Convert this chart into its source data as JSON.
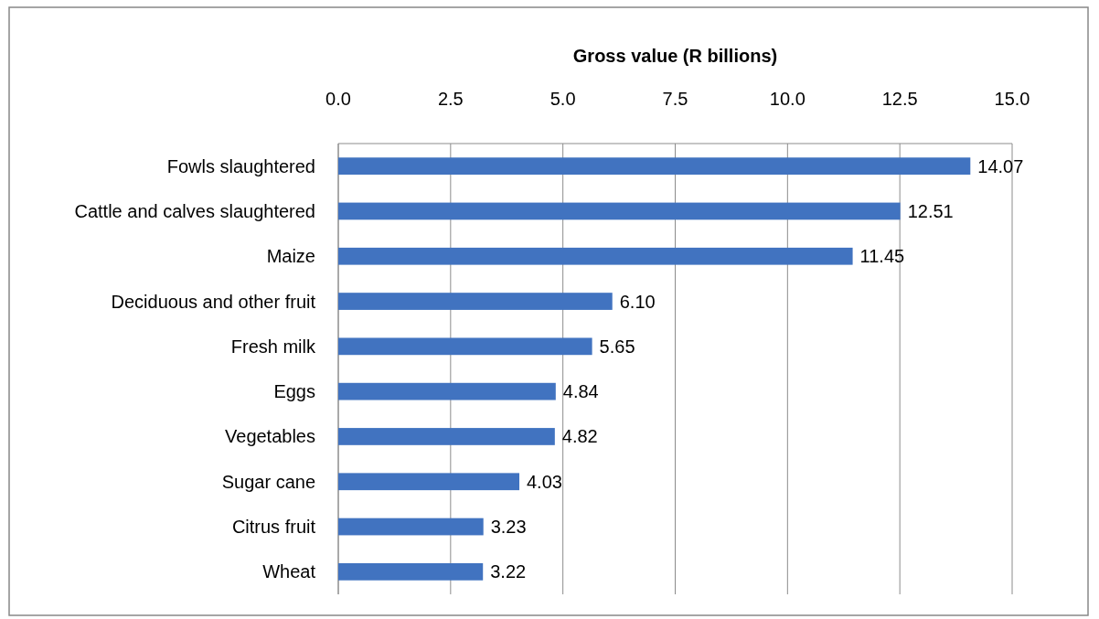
{
  "chart_data": {
    "type": "bar",
    "orientation": "horizontal",
    "xlabel": "Gross value (R billions)",
    "categories": [
      "Fowls slaughtered",
      "Cattle and calves slaughtered",
      "Maize",
      "Deciduous and other fruit",
      "Fresh milk",
      "Eggs",
      "Vegetables",
      "Sugar cane",
      "Citrus fruit",
      "Wheat"
    ],
    "values": [
      14.07,
      12.51,
      11.45,
      6.1,
      5.65,
      4.84,
      4.82,
      4.03,
      3.23,
      3.22
    ],
    "value_labels": [
      "14.07",
      "12.51",
      "11.45",
      "6.10",
      "5.65",
      "4.84",
      "4.82",
      "4.03",
      "3.23",
      "3.22"
    ],
    "color": "#4173c0",
    "xlim": [
      0,
      15
    ],
    "xticks": [
      {
        "value": 0,
        "label": "0.0"
      },
      {
        "value": 2.5,
        "label": "2.5"
      },
      {
        "value": 5,
        "label": "5.0"
      },
      {
        "value": 7.5,
        "label": "7.5"
      },
      {
        "value": 10,
        "label": "10.0"
      },
      {
        "value": 12.5,
        "label": "12.5"
      },
      {
        "value": 15,
        "label": "15.0"
      }
    ],
    "grid": "x"
  }
}
